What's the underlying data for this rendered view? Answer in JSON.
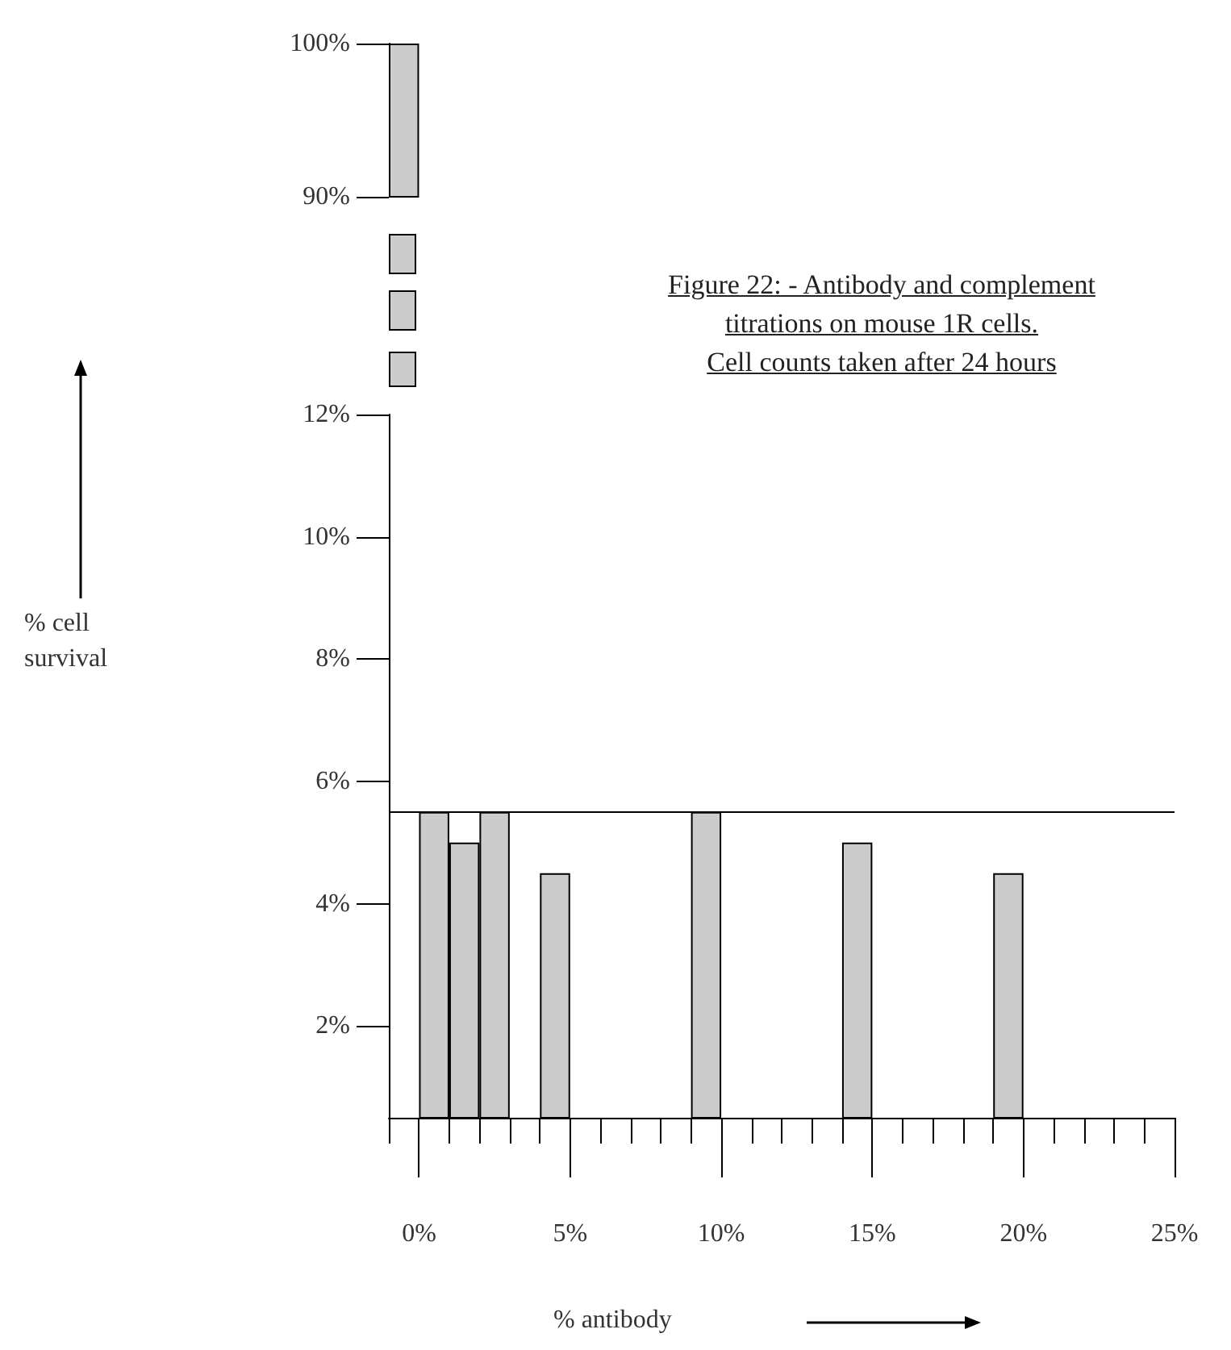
{
  "chart_data": [
    {
      "type": "bar",
      "title": "Figure 22: - Antibody and complement\ntitrations on mouse 1R cells.\nCell counts taken after 24 hours",
      "x": [
        -0.5
      ],
      "values": [
        100
      ],
      "color": "#cccccc",
      "xlim": [
        -1,
        25
      ],
      "ylim": [
        90,
        100
      ],
      "yticks": [
        {
          "value": 90,
          "label": "90%"
        },
        {
          "value": 100,
          "label": "100%"
        }
      ],
      "tick_labels": "y"
    },
    {
      "type": "bar",
      "ylabel": "% cell survival",
      "xlabel": "% antibody",
      "x": [
        0.5,
        1.5,
        2.5,
        4.5,
        9.5,
        14.5,
        19.5
      ],
      "values": [
        5.5,
        5,
        5.5,
        4.5,
        5.5,
        5,
        4.5
      ],
      "color": "#cccccc",
      "xlim": [
        -1,
        25
      ],
      "ylim": [
        0.5,
        12
      ],
      "yticks": [
        {
          "value": 2,
          "label": "2%"
        },
        {
          "value": 4,
          "label": "4%"
        },
        {
          "value": 6,
          "label": "6%"
        },
        {
          "value": 8,
          "label": "8%"
        },
        {
          "value": 10,
          "label": "10%"
        },
        {
          "value": 12,
          "label": "12%"
        }
      ],
      "xticks": [
        {
          "value": -1,
          "label": null
        },
        {
          "value": 0,
          "label": "0%"
        },
        {
          "value": 1,
          "label": null
        },
        {
          "value": 2,
          "label": null
        },
        {
          "value": 3,
          "label": null
        },
        {
          "value": 4,
          "label": null
        },
        {
          "value": 5,
          "label": "5%"
        },
        {
          "value": 6,
          "label": null
        },
        {
          "value": 7,
          "label": null
        },
        {
          "value": 8,
          "label": null
        },
        {
          "value": 9,
          "label": null
        },
        {
          "value": 10,
          "label": "10%"
        },
        {
          "value": 11,
          "label": null
        },
        {
          "value": 12,
          "label": null
        },
        {
          "value": 13,
          "label": null
        },
        {
          "value": 14,
          "label": null
        },
        {
          "value": 15,
          "label": "15%"
        },
        {
          "value": 16,
          "label": null
        },
        {
          "value": 17,
          "label": null
        },
        {
          "value": 18,
          "label": null
        },
        {
          "value": 19,
          "label": null
        },
        {
          "value": 20,
          "label": "20%"
        },
        {
          "value": 21,
          "label": null
        },
        {
          "value": 22,
          "label": null
        },
        {
          "value": 23,
          "label": null
        },
        {
          "value": 24,
          "label": null
        },
        {
          "value": 25,
          "label": "25%"
        }
      ],
      "ref_lines": [
        {
          "axis": "y",
          "value": 5.5
        }
      ]
    }
  ]
}
